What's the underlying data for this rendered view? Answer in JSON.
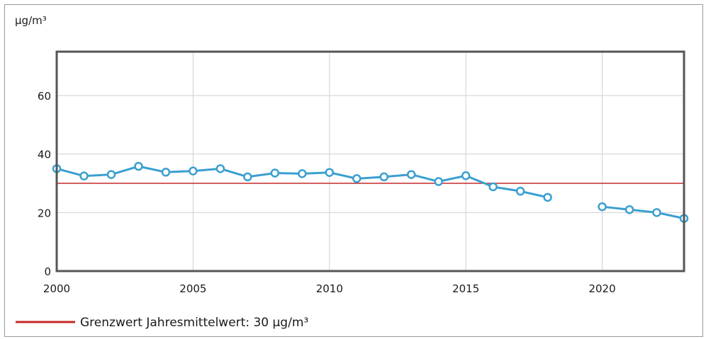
{
  "chart_data": {
    "type": "line",
    "unit_label": "µg/m³",
    "x_ticks": [
      2000,
      2005,
      2010,
      2015,
      2020
    ],
    "y_ticks": [
      0,
      20,
      40,
      60
    ],
    "xlim": [
      2000,
      2023
    ],
    "ylim": [
      0,
      75
    ],
    "grid": true,
    "series": [
      {
        "color": "#3a9fd0",
        "points": [
          {
            "x": 2000,
            "y": 35
          },
          {
            "x": 2001,
            "y": 32.5
          },
          {
            "x": 2002,
            "y": 33
          },
          {
            "x": 2003,
            "y": 35.8
          },
          {
            "x": 2004,
            "y": 33.8
          },
          {
            "x": 2005,
            "y": 34.2
          },
          {
            "x": 2006,
            "y": 35
          },
          {
            "x": 2007,
            "y": 32.2
          },
          {
            "x": 2008,
            "y": 33.5
          },
          {
            "x": 2009,
            "y": 33.3
          },
          {
            "x": 2010,
            "y": 33.7
          },
          {
            "x": 2011,
            "y": 31.6
          },
          {
            "x": 2012,
            "y": 32.2
          },
          {
            "x": 2013,
            "y": 33
          },
          {
            "x": 2014,
            "y": 30.6
          },
          {
            "x": 2015,
            "y": 32.6
          },
          {
            "x": 2016,
            "y": 28.8
          },
          {
            "x": 2017,
            "y": 27.3
          },
          {
            "x": 2018,
            "y": 25.2
          },
          {
            "x": 2019,
            "y": null
          },
          {
            "x": 2020,
            "y": 22
          },
          {
            "x": 2021,
            "y": 21
          },
          {
            "x": 2022,
            "y": 20
          },
          {
            "x": 2023,
            "y": 18
          }
        ]
      }
    ],
    "reference_line": {
      "value": 30,
      "color": "#c62828",
      "label": "Grenzwert Jahresmittelwert: 30 µg/m³"
    },
    "legend_position": "bottom-left"
  }
}
